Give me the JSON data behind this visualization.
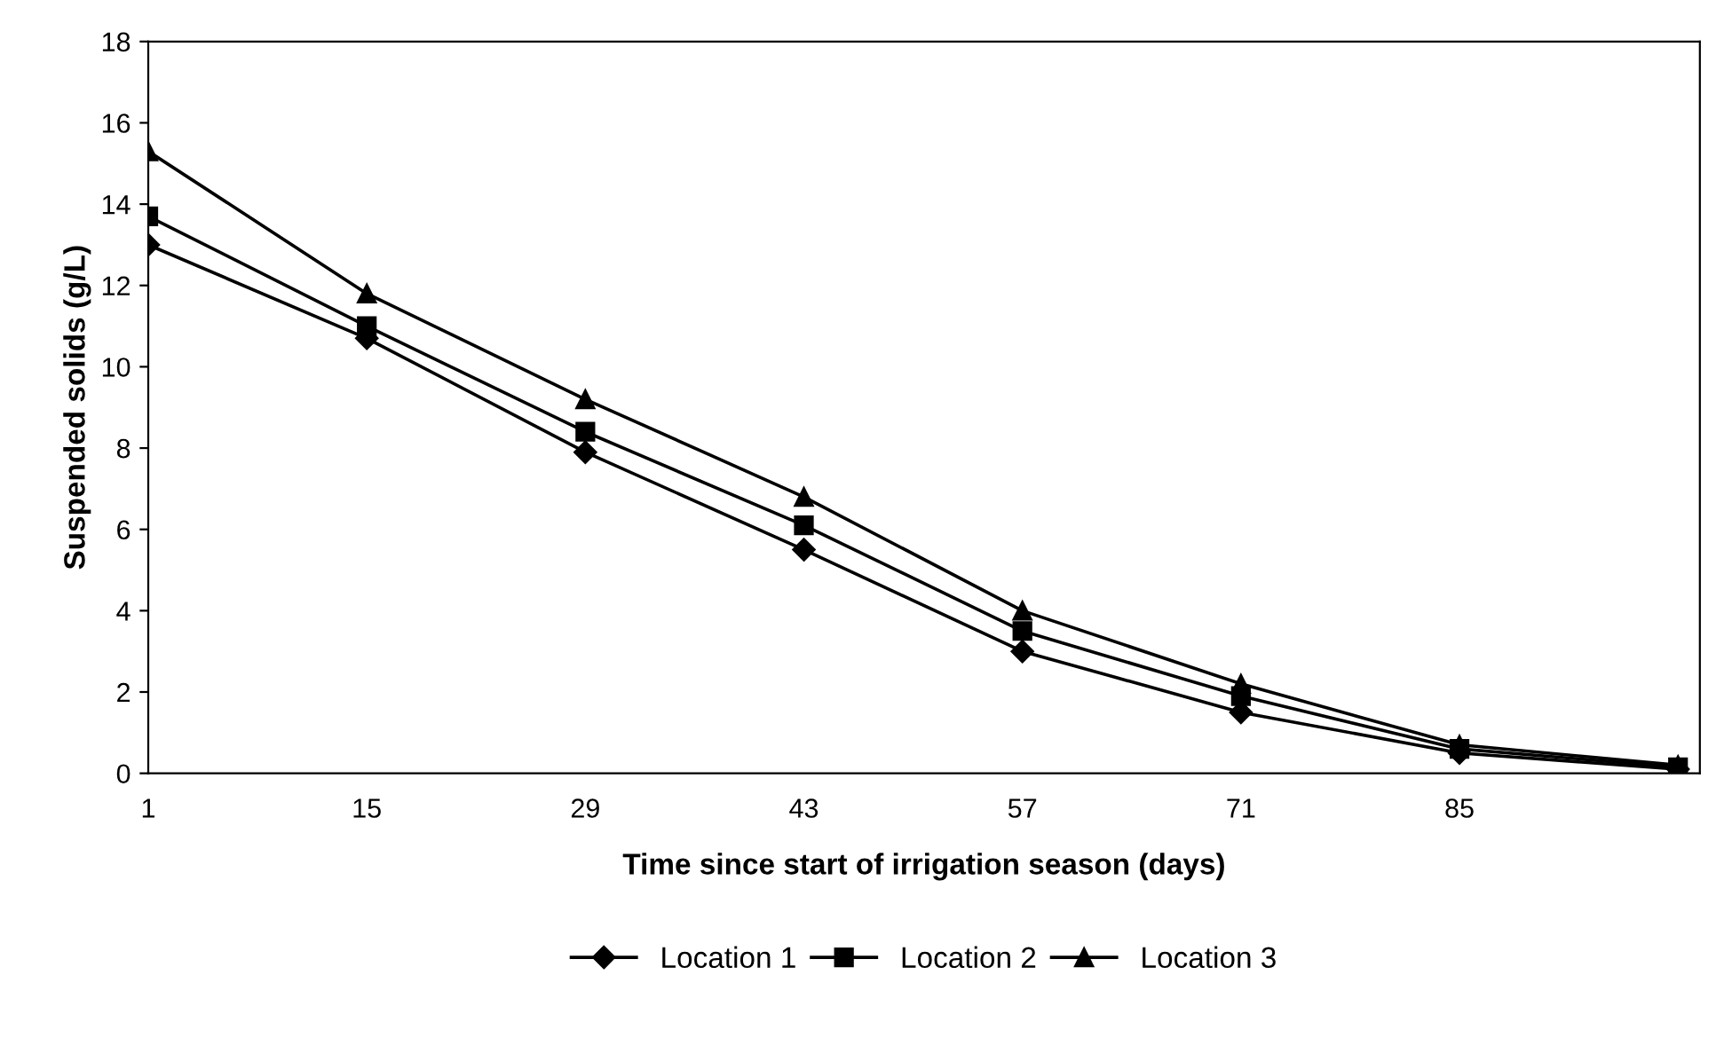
{
  "chart_data": {
    "type": "line",
    "xlabel": "Time since start of irrigation season (days)",
    "ylabel": "Suspended solids (g/L)",
    "categories": [
      "1",
      "15",
      "29",
      "43",
      "57",
      "71",
      "85",
      null
    ],
    "series": [
      {
        "name": "Location 1",
        "color": "#000000",
        "marker": "diamond",
        "values": [
          13.0,
          10.7,
          7.9,
          5.5,
          3.0,
          1.5,
          0.5,
          0.1
        ]
      },
      {
        "name": "Location 2",
        "color": "#000000",
        "marker": "square",
        "values": [
          13.7,
          11.0,
          8.4,
          6.1,
          3.5,
          1.9,
          0.6,
          0.15
        ]
      },
      {
        "name": "Location 3",
        "color": "#000000",
        "marker": "triangle",
        "values": [
          15.3,
          11.8,
          9.2,
          6.8,
          4.0,
          2.2,
          0.7,
          0.2
        ]
      }
    ],
    "ylim": [
      0,
      18
    ],
    "yticks": [
      0,
      2,
      4,
      6,
      8,
      10,
      12,
      14,
      16,
      18
    ],
    "grid": false,
    "legend": "bottom",
    "line_style": "solid"
  }
}
